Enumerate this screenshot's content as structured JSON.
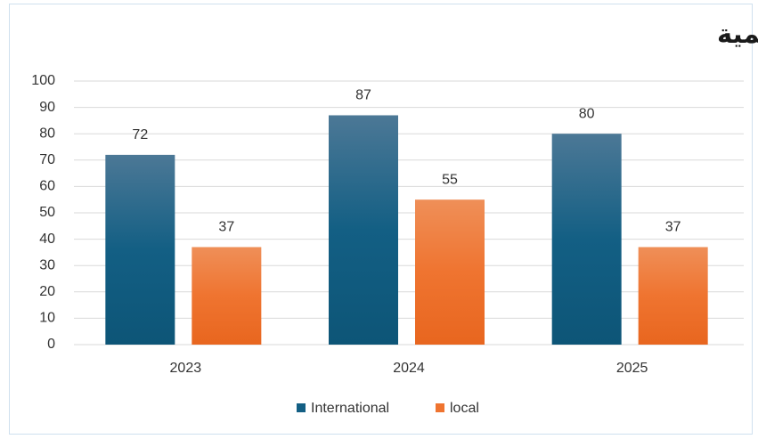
{
  "chart_data": {
    "type": "bar",
    "title": "تطور نسب النشر الدولي للنشر المحلي للأبحاث العلمية",
    "categories": [
      "2023",
      "2024",
      "2025"
    ],
    "series": [
      {
        "name": "International",
        "color": "#135f84",
        "values": [
          72,
          87,
          80
        ]
      },
      {
        "name": "local",
        "color": "#ef7430",
        "values": [
          37,
          55,
          37
        ]
      }
    ],
    "ylim": [
      0,
      100
    ],
    "yticks": [
      0,
      10,
      20,
      30,
      40,
      50,
      60,
      70,
      80,
      90,
      100
    ],
    "grid": true,
    "legend": "bottom"
  }
}
